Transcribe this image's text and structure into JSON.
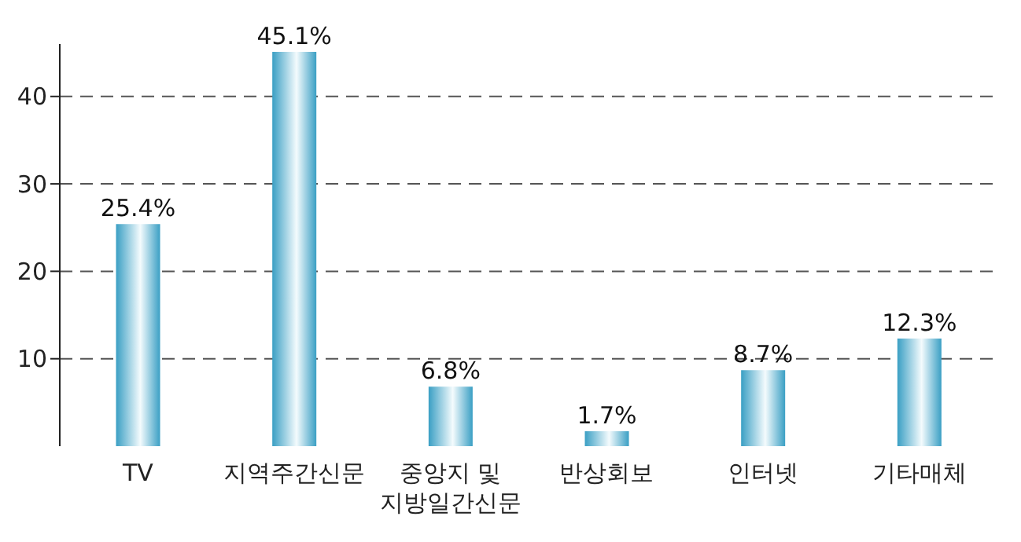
{
  "chart_data": {
    "type": "bar",
    "categories": [
      "TV",
      "지역주간신문",
      "중앙지 및 지방일간신문",
      "반상회보",
      "인터넷",
      "기타매체"
    ],
    "values": [
      25.4,
      45.1,
      6.8,
      1.7,
      8.7,
      12.3
    ],
    "value_labels": [
      "25.4%",
      "45.1%",
      "6.8%",
      "1.7%",
      "8.7%",
      "12.3%"
    ],
    "color": "#3a9fc4",
    "ylim": [
      0,
      46
    ],
    "yticks": [
      10,
      20,
      30,
      40
    ],
    "grid": "y"
  }
}
